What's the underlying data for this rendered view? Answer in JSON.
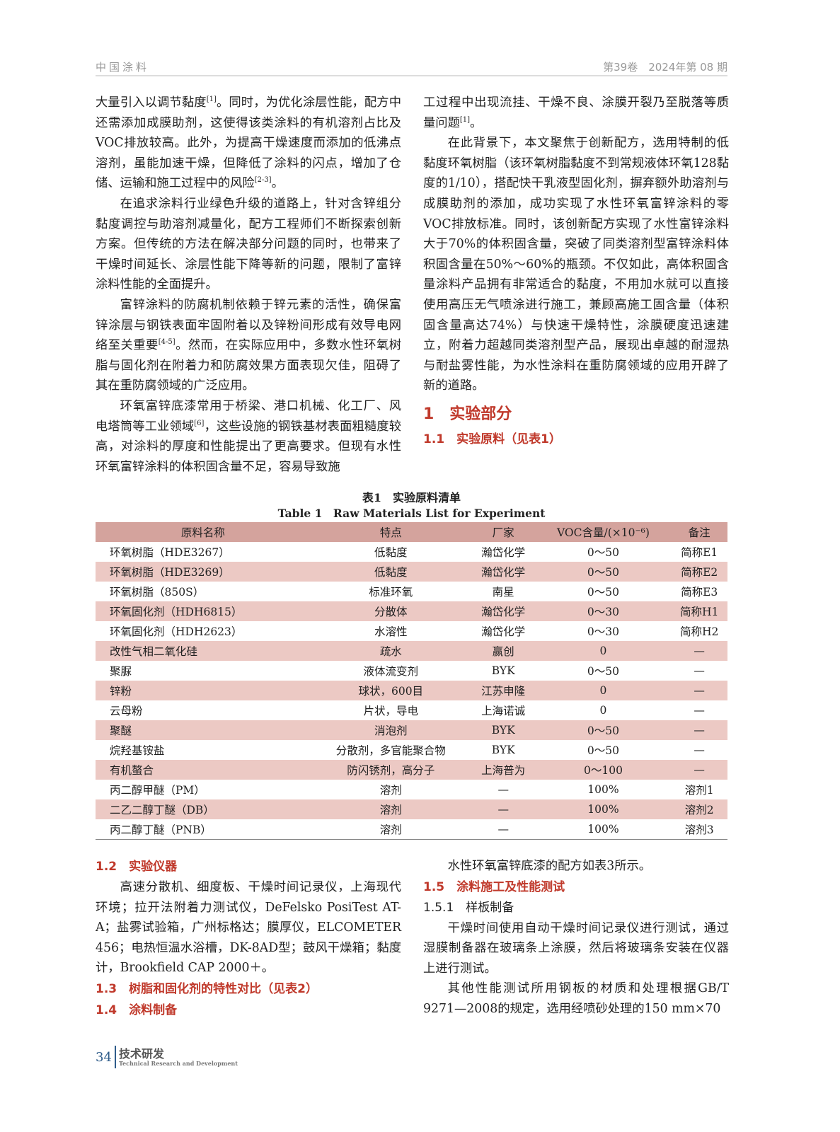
{
  "header": {
    "journal": "中国涂料",
    "issue": "第39卷　2024年第 08 期"
  },
  "left_col": {
    "p1": "大量引入以调节黏度[1]。同时，为优化涂层性能，配方中还需添加成膜助剂，这使得该类涂料的有机溶剂占比及VOC排放较高。此外，为提高干燥速度而添加的低沸点溶剂，虽能加速干燥，但降低了涂料的闪点，增加了仓储、运输和施工过程中的风险[2-3]。",
    "p2": "在追求涂料行业绿色升级的道路上，针对含锌组分黏度调控与助溶剂减量化，配方工程师们不断探索创新方案。但传统的方法在解决部分问题的同时，也带来了干燥时间延长、涂层性能下降等新的问题，限制了富锌涂料性能的全面提升。",
    "p3": "富锌涂料的防腐机制依赖于锌元素的活性，确保富锌涂层与钢铁表面牢固附着以及锌粉间形成有效导电网络至关重要[4-5]。然而，在实际应用中，多数水性环氧树脂与固化剂在附着力和防腐效果方面表现欠佳，阻碍了其在重防腐领域的广泛应用。",
    "p4": "环氧富锌底漆常用于桥梁、港口机械、化工厂、风电塔筒等工业领域[6]，这些设施的钢铁基材表面粗糙度较高，对涂料的厚度和性能提出了更高要求。但现有水性环氧富锌涂料的体积固含量不足，容易导致施"
  },
  "right_col": {
    "p1": "工过程中出现流挂、干燥不良、涂膜开裂乃至脱落等质量问题[1]。",
    "p2": "在此背景下，本文聚焦于创新配方，选用特制的低黏度环氧树脂（该环氧树脂黏度不到常规液体环氧128黏度的1/10），搭配快干乳液型固化剂，摒弃额外助溶剂与成膜助剂的添加，成功实现了水性环氧富锌涂料的零VOC排放标准。同时，该创新配方实现了水性富锌涂料大于70%的体积固含量，突破了同类溶剂型富锌涂料体积固含量在50%～60%的瓶颈。不仅如此，高体积固含量涂料产品拥有非常适合的黏度，不用加水就可以直接使用高压无气喷涂进行施工，兼顾高施工固含量（体积固含量高达74%）与快速干燥特性，涂膜硬度迅速建立，附着力超越同类溶剂型产品，展现出卓越的耐湿热与耐盐雾性能，为水性涂料在重防腐领域的应用开辟了新的道路。",
    "h1": "1　实验部分",
    "h11": "1.1　实验原料（见表1）"
  },
  "table": {
    "caption_cn": "表1　实验原料清单",
    "caption_en": "Table 1　Raw Materials List for Experiment",
    "headers": [
      "原料名称",
      "特点",
      "厂家",
      "VOC含量/(×10⁻⁶)",
      "备注"
    ],
    "rows": [
      [
        "环氧树脂（HDE3267）",
        "低黏度",
        "瀚岱化学",
        "0～50",
        "简称E1"
      ],
      [
        "环氧树脂（HDE3269）",
        "低黏度",
        "瀚岱化学",
        "0～50",
        "简称E2"
      ],
      [
        "环氧树脂（850S）",
        "标准环氧",
        "南星",
        "0～50",
        "简称E3"
      ],
      [
        "环氧固化剂（HDH6815）",
        "分散体",
        "瀚岱化学",
        "0～30",
        "简称H1"
      ],
      [
        "环氧固化剂（HDH2623）",
        "水溶性",
        "瀚岱化学",
        "0～30",
        "简称H2"
      ],
      [
        "改性气相二氧化硅",
        "疏水",
        "赢创",
        "0",
        "—"
      ],
      [
        "聚脲",
        "液体流变剂",
        "BYK",
        "0～50",
        "—"
      ],
      [
        "锌粉",
        "球状，600目",
        "江苏申隆",
        "0",
        "—"
      ],
      [
        "云母粉",
        "片状，导电",
        "上海诺诚",
        "0",
        "—"
      ],
      [
        "聚醚",
        "消泡剂",
        "BYK",
        "0～50",
        "—"
      ],
      [
        "烷羟基铵盐",
        "分散剂，多官能聚合物",
        "BYK",
        "0～50",
        "—"
      ],
      [
        "有机螯合",
        "防闪锈剂，高分子",
        "上海普为",
        "0～100",
        "—"
      ],
      [
        "丙二醇甲醚（PM）",
        "溶剂",
        "—",
        "100%",
        "溶剂1"
      ],
      [
        "二乙二醇丁醚（DB）",
        "溶剂",
        "—",
        "100%",
        "溶剂2"
      ],
      [
        "丙二醇丁醚（PNB）",
        "溶剂",
        "—",
        "100%",
        "溶剂3"
      ]
    ]
  },
  "lower_left": {
    "h12": "1.2　实验仪器",
    "p": "高速分散机、细度板、干燥时间记录仪，上海现代环境；拉开法附着力测试仪，DeFelsko PosiTest AT-A；盐雾试验箱，广州标格达；膜厚仪，ELCOMETER 456；电热恒温水浴槽，DK-8AD型；鼓风干燥箱；黏度计，Brookfield CAP 2000＋。",
    "h13": "1.3　树脂和固化剂的特性对比（见表2）",
    "h14": "1.4　涂料制备"
  },
  "lower_right": {
    "p0": "水性环氧富锌底漆的配方如表3所示。",
    "h15": "1.5　涂料施工及性能测试",
    "h151": "1.5.1　样板制备",
    "p1": "干燥时间使用自动干燥时间记录仪进行测试，通过湿膜制备器在玻璃条上涂膜，然后将玻璃条安装在仪器上进行测试。",
    "p2": "其他性能测试所用钢板的材质和处理根据GB/T 9271—2008的规定，选用经喷砂处理的150 mm×70"
  },
  "footer": {
    "page": "34",
    "section": "技术研发",
    "section_en": "Technical Research and Development"
  },
  "colors": {
    "accent": "#c0392b",
    "table_header": "#d4a39d",
    "table_stripe": "#ecc9c4",
    "footer_blue": "#2e5c8a"
  }
}
